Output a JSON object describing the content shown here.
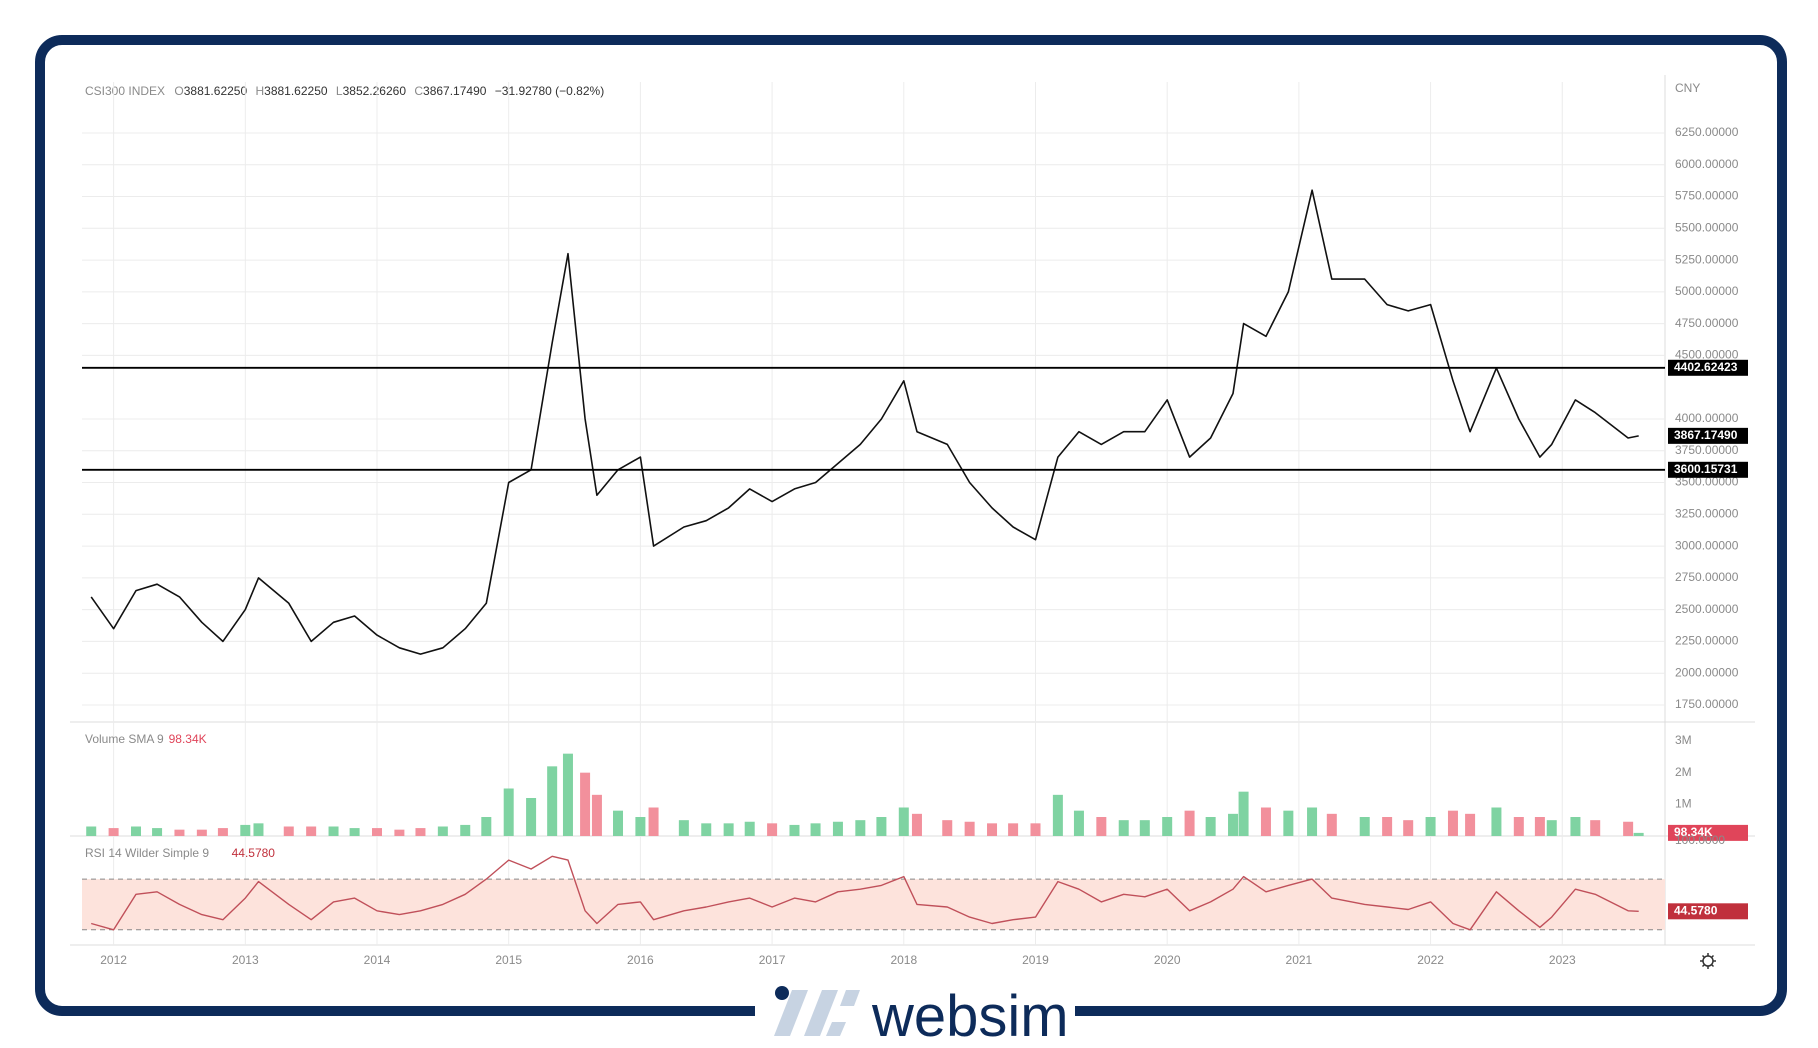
{
  "header": {
    "symbol": "CSI300 INDEX",
    "fields": [
      {
        "key": "O",
        "value": "3881.62250"
      },
      {
        "key": "H",
        "value": "3881.62250"
      },
      {
        "key": "L",
        "value": "3852.26260"
      },
      {
        "key": "C",
        "value": "3867.17490"
      }
    ],
    "change": "−31.92780 (−0.82%)"
  },
  "currency": "CNY",
  "brand": "websim",
  "chart_data": [
    {
      "type": "line",
      "x": [
        2011.83,
        2012.0,
        2012.17,
        2012.33,
        2012.5,
        2012.67,
        2012.83,
        2013.0,
        2013.1,
        2013.33,
        2013.5,
        2013.67,
        2013.83,
        2014.0,
        2014.17,
        2014.33,
        2014.5,
        2014.67,
        2014.83,
        2015.0,
        2015.17,
        2015.33,
        2015.45,
        2015.58,
        2015.67,
        2015.83,
        2016.0,
        2016.1,
        2016.33,
        2016.5,
        2016.67,
        2016.83,
        2017.0,
        2017.17,
        2017.33,
        2017.5,
        2017.67,
        2017.83,
        2018.0,
        2018.1,
        2018.33,
        2018.5,
        2018.67,
        2018.83,
        2019.0,
        2019.17,
        2019.33,
        2019.5,
        2019.67,
        2019.83,
        2020.0,
        2020.17,
        2020.33,
        2020.5,
        2020.58,
        2020.75,
        2020.92,
        2021.1,
        2021.25,
        2021.5,
        2021.67,
        2021.83,
        2022.0,
        2022.17,
        2022.3,
        2022.5,
        2022.67,
        2022.83,
        2022.92,
        2023.1,
        2023.25,
        2023.5,
        2023.58
      ],
      "xlim": [
        2011.76,
        2023.78
      ],
      "xticks": [
        2012,
        2013,
        2014,
        2015,
        2016,
        2017,
        2018,
        2019,
        2020,
        2021,
        2022,
        2023
      ],
      "ylim": [
        1616,
        6651
      ],
      "yticks": [
        {
          "value": 1750,
          "label": "1750.00000"
        },
        {
          "value": 2000,
          "label": "2000.00000"
        },
        {
          "value": 2250,
          "label": "2250.00000"
        },
        {
          "value": 2500,
          "label": "2500.00000"
        },
        {
          "value": 2750,
          "label": "2750.00000"
        },
        {
          "value": 3000,
          "label": "3000.00000"
        },
        {
          "value": 3250,
          "label": "3250.00000"
        },
        {
          "value": 3500,
          "label": "3500.00000"
        },
        {
          "value": 3750,
          "label": "3750.00000"
        },
        {
          "value": 4000,
          "label": "4000.00000"
        },
        {
          "value": 4500,
          "label": "4500.00000"
        },
        {
          "value": 4750,
          "label": "4750.00000"
        },
        {
          "value": 5000,
          "label": "5000.00000"
        },
        {
          "value": 5250,
          "label": "5250.00000"
        },
        {
          "value": 5500,
          "label": "5500.00000"
        },
        {
          "value": 5750,
          "label": "5750.00000"
        },
        {
          "value": 6000,
          "label": "6000.00000"
        },
        {
          "value": 6250,
          "label": "6250.00000"
        }
      ],
      "grid": true,
      "series": [
        {
          "color": "#111111",
          "values": [
            2600,
            2350,
            2650,
            2700,
            2600,
            2400,
            2250,
            2500,
            2750,
            2550,
            2250,
            2400,
            2450,
            2300,
            2200,
            2150,
            2200,
            2350,
            2550,
            3500,
            3600,
            4600,
            5300,
            4000,
            3400,
            3600,
            3700,
            3000,
            3150,
            3200,
            3300,
            3450,
            3350,
            3450,
            3500,
            3650,
            3800,
            4000,
            4300,
            3900,
            3800,
            3500,
            3300,
            3150,
            3050,
            3700,
            3900,
            3800,
            3900,
            3900,
            4150,
            3700,
            3850,
            4200,
            4750,
            4650,
            5000,
            5800,
            5100,
            5100,
            4900,
            4850,
            4900,
            4300,
            3900,
            4400,
            4000,
            3700,
            3800,
            4150,
            4050,
            3850,
            3867.1749
          ]
        }
      ],
      "hlines": [
        {
          "value": 4402.62423,
          "label": "4402.62423",
          "color": "#000000"
        },
        {
          "value": 3600.15731,
          "label": "3600.15731",
          "color": "#000000"
        }
      ],
      "last": {
        "value": 3867.1749,
        "label": "3867.17490",
        "color": "#000000"
      }
    },
    {
      "type": "bar",
      "title": "Volume SMA 9",
      "x": [
        2011.83,
        2012.0,
        2012.17,
        2012.33,
        2012.5,
        2012.67,
        2012.83,
        2013.0,
        2013.1,
        2013.33,
        2013.5,
        2013.67,
        2013.83,
        2014.0,
        2014.17,
        2014.33,
        2014.5,
        2014.67,
        2014.83,
        2015.0,
        2015.17,
        2015.33,
        2015.45,
        2015.58,
        2015.67,
        2015.83,
        2016.0,
        2016.1,
        2016.33,
        2016.5,
        2016.67,
        2016.83,
        2017.0,
        2017.17,
        2017.33,
        2017.5,
        2017.67,
        2017.83,
        2018.0,
        2018.1,
        2018.33,
        2018.5,
        2018.67,
        2018.83,
        2019.0,
        2019.17,
        2019.33,
        2019.5,
        2019.67,
        2019.83,
        2020.0,
        2020.17,
        2020.33,
        2020.5,
        2020.58,
        2020.75,
        2020.92,
        2021.1,
        2021.25,
        2021.5,
        2021.67,
        2021.83,
        2022.0,
        2022.17,
        2022.3,
        2022.5,
        2022.67,
        2022.83,
        2022.92,
        2023.1,
        2023.25,
        2023.5,
        2023.58
      ],
      "xlim": [
        2011.76,
        2023.78
      ],
      "ylim": [
        0,
        3.6
      ],
      "yticks": [
        {
          "value": 1,
          "label": "1M"
        },
        {
          "value": 2,
          "label": "2M"
        },
        {
          "value": 3,
          "label": "3M"
        }
      ],
      "values": [
        0.3,
        0.25,
        0.3,
        0.25,
        0.2,
        0.2,
        0.25,
        0.35,
        0.4,
        0.3,
        0.3,
        0.3,
        0.25,
        0.25,
        0.2,
        0.25,
        0.3,
        0.35,
        0.6,
        1.5,
        1.2,
        2.2,
        2.6,
        2.0,
        1.3,
        0.8,
        0.6,
        0.9,
        0.5,
        0.4,
        0.4,
        0.45,
        0.4,
        0.35,
        0.4,
        0.45,
        0.5,
        0.6,
        0.9,
        0.7,
        0.5,
        0.45,
        0.4,
        0.4,
        0.4,
        1.3,
        0.8,
        0.6,
        0.5,
        0.5,
        0.6,
        0.8,
        0.6,
        0.7,
        1.4,
        0.9,
        0.8,
        0.9,
        0.7,
        0.6,
        0.6,
        0.5,
        0.6,
        0.8,
        0.7,
        0.9,
        0.6,
        0.6,
        0.5,
        0.6,
        0.5,
        0.45,
        0.09834
      ],
      "up_color": "#7fd3a2",
      "down_color": "#f2909c",
      "last": {
        "value": 0.09834,
        "label": "98.34K",
        "color": "#e0455a"
      }
    },
    {
      "type": "line",
      "title": "RSI 14 Wilder Simple 9",
      "x": [
        2011.83,
        2012.0,
        2012.17,
        2012.33,
        2012.5,
        2012.67,
        2012.83,
        2013.0,
        2013.1,
        2013.33,
        2013.5,
        2013.67,
        2013.83,
        2014.0,
        2014.17,
        2014.33,
        2014.5,
        2014.67,
        2014.83,
        2015.0,
        2015.17,
        2015.33,
        2015.45,
        2015.58,
        2015.67,
        2015.83,
        2016.0,
        2016.1,
        2016.33,
        2016.5,
        2016.67,
        2016.83,
        2017.0,
        2017.17,
        2017.33,
        2017.5,
        2017.67,
        2017.83,
        2018.0,
        2018.1,
        2018.33,
        2018.5,
        2018.67,
        2018.83,
        2019.0,
        2019.17,
        2019.33,
        2019.5,
        2019.67,
        2019.83,
        2020.0,
        2020.17,
        2020.33,
        2020.5,
        2020.58,
        2020.75,
        2020.92,
        2021.1,
        2021.25,
        2021.5,
        2021.67,
        2021.83,
        2022.0,
        2022.17,
        2022.3,
        2022.5,
        2022.67,
        2022.83,
        2022.92,
        2023.1,
        2023.25,
        2023.5,
        2023.58
      ],
      "xlim": [
        2011.76,
        2023.78
      ],
      "ylim": [
        18,
        104
      ],
      "yticks": [
        {
          "value": 100,
          "label": "100.0000"
        }
      ],
      "bands": [
        30,
        70
      ],
      "band_color": "#fde3dc",
      "series": [
        {
          "color": "#c0505a",
          "values": [
            35,
            30,
            58,
            60,
            50,
            42,
            38,
            55,
            68,
            50,
            38,
            52,
            55,
            45,
            42,
            45,
            50,
            58,
            70,
            85,
            78,
            88,
            85,
            45,
            35,
            50,
            52,
            38,
            45,
            48,
            52,
            55,
            48,
            55,
            52,
            60,
            62,
            65,
            72,
            50,
            48,
            40,
            35,
            38,
            40,
            68,
            62,
            52,
            58,
            56,
            62,
            45,
            52,
            62,
            72,
            60,
            65,
            70,
            55,
            50,
            48,
            46,
            52,
            35,
            30,
            60,
            45,
            32,
            40,
            62,
            58,
            45,
            44.578
          ]
        }
      ],
      "last": {
        "value": 44.578,
        "label": "44.5780",
        "color": "#c0303c"
      }
    }
  ]
}
